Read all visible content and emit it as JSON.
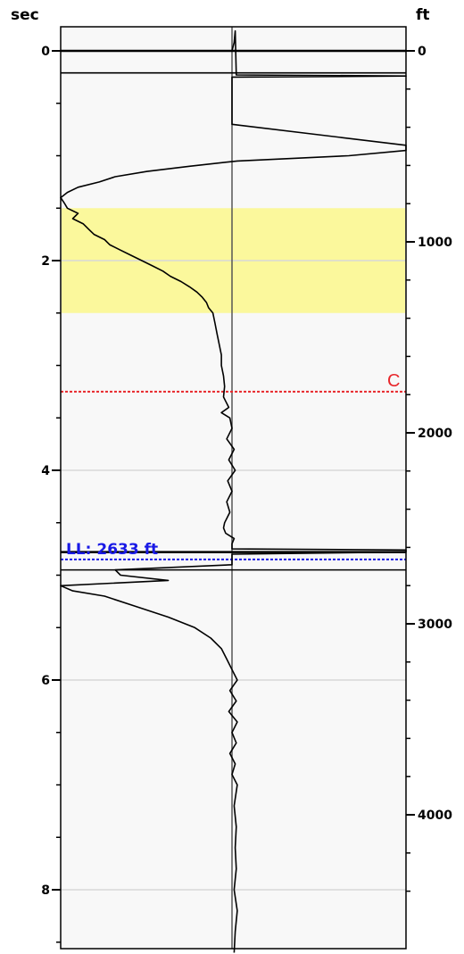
{
  "chart_data": {
    "type": "line",
    "left_axis": {
      "label": "sec",
      "ticks": [
        "0",
        "2",
        "4",
        "6",
        "8"
      ],
      "range": [
        -0.25,
        8.65
      ]
    },
    "right_axis": {
      "label": "ft",
      "ticks": [
        "0",
        "1000",
        "2000",
        "3000",
        "4000"
      ]
    },
    "highlight_band": {
      "from": 1.5,
      "to": 2.5,
      "color": "#fbf89c"
    },
    "markers": [
      {
        "label": "C",
        "at": 3.25,
        "color": "#e8262a",
        "style": "dotted"
      },
      {
        "label": "LL: 2633 ft",
        "at": 4.85,
        "color": "#1a1ae6",
        "style": "dotted"
      }
    ],
    "series": [
      {
        "points": [
          [
            0.0,
            0.0
          ],
          [
            -0.08,
            0.02
          ],
          [
            -0.19,
            0.03
          ],
          [
            0.23,
            0.04
          ],
          [
            0.24,
            1.65
          ],
          [
            0.25,
            0.0
          ],
          [
            0.7,
            0.0
          ],
          [
            0.9,
            2.3
          ],
          [
            0.95,
            1.92
          ],
          [
            1.0,
            1.1
          ],
          [
            1.05,
            0.05
          ],
          [
            1.1,
            -0.4
          ],
          [
            1.15,
            -0.8
          ],
          [
            1.2,
            -1.1
          ],
          [
            1.25,
            -1.25
          ],
          [
            1.3,
            -1.45
          ],
          [
            1.35,
            -1.55
          ],
          [
            1.4,
            -1.62
          ],
          [
            1.45,
            -1.58
          ],
          [
            1.5,
            -1.55
          ],
          [
            1.55,
            -1.45
          ],
          [
            1.6,
            -1.5
          ],
          [
            1.65,
            -1.4
          ],
          [
            1.7,
            -1.35
          ],
          [
            1.75,
            -1.3
          ],
          [
            1.8,
            -1.2
          ],
          [
            1.85,
            -1.15
          ],
          [
            1.9,
            -1.05
          ],
          [
            1.95,
            -0.95
          ],
          [
            2.0,
            -0.85
          ],
          [
            2.05,
            -0.75
          ],
          [
            2.1,
            -0.65
          ],
          [
            2.15,
            -0.58
          ],
          [
            2.2,
            -0.48
          ],
          [
            2.25,
            -0.4
          ],
          [
            2.3,
            -0.33
          ],
          [
            2.35,
            -0.28
          ],
          [
            2.4,
            -0.24
          ],
          [
            2.45,
            -0.22
          ],
          [
            2.5,
            -0.18
          ],
          [
            2.6,
            -0.16
          ],
          [
            2.7,
            -0.14
          ],
          [
            2.8,
            -0.12
          ],
          [
            2.9,
            -0.1
          ],
          [
            3.0,
            -0.1
          ],
          [
            3.1,
            -0.08
          ],
          [
            3.2,
            -0.07
          ],
          [
            3.3,
            -0.08
          ],
          [
            3.4,
            -0.03
          ],
          [
            3.45,
            -0.1
          ],
          [
            3.5,
            -0.02
          ],
          [
            3.6,
            0.0
          ],
          [
            3.7,
            -0.05
          ],
          [
            3.8,
            0.02
          ],
          [
            3.9,
            -0.03
          ],
          [
            4.0,
            0.03
          ],
          [
            4.1,
            -0.04
          ],
          [
            4.2,
            0.0
          ],
          [
            4.3,
            -0.05
          ],
          [
            4.4,
            -0.02
          ],
          [
            4.5,
            -0.07
          ],
          [
            4.55,
            -0.08
          ],
          [
            4.6,
            -0.06
          ],
          [
            4.65,
            0.02
          ],
          [
            4.7,
            0.0
          ],
          [
            4.75,
            0.0
          ],
          [
            4.76,
            1.9
          ],
          [
            4.78,
            2.1
          ],
          [
            4.8,
            0.0
          ],
          [
            4.9,
            0.0
          ],
          [
            4.95,
            -1.1
          ],
          [
            5.0,
            -1.05
          ],
          [
            5.05,
            -0.6
          ],
          [
            5.1,
            -1.62
          ],
          [
            5.15,
            -1.5
          ],
          [
            5.2,
            -1.2
          ],
          [
            5.3,
            -0.9
          ],
          [
            5.4,
            -0.6
          ],
          [
            5.5,
            -0.35
          ],
          [
            5.6,
            -0.2
          ],
          [
            5.7,
            -0.1
          ],
          [
            5.8,
            -0.05
          ],
          [
            5.9,
            0.0
          ],
          [
            6.0,
            0.05
          ],
          [
            6.1,
            -0.02
          ],
          [
            6.2,
            0.04
          ],
          [
            6.3,
            -0.03
          ],
          [
            6.4,
            0.05
          ],
          [
            6.5,
            0.0
          ],
          [
            6.6,
            0.04
          ],
          [
            6.7,
            -0.02
          ],
          [
            6.8,
            0.03
          ],
          [
            6.9,
            0.0
          ],
          [
            7.0,
            0.05
          ],
          [
            7.2,
            0.02
          ],
          [
            7.4,
            0.04
          ],
          [
            7.6,
            0.03
          ],
          [
            7.8,
            0.04
          ],
          [
            8.0,
            0.02
          ],
          [
            8.2,
            0.05
          ],
          [
            8.4,
            0.03
          ],
          [
            8.6,
            0.02
          ]
        ]
      }
    ],
    "overlay_lines": [
      0.0,
      0.21,
      4.78,
      4.95
    ],
    "grid_lines": [
      2,
      4,
      6,
      8
    ],
    "y_direction": "down"
  }
}
